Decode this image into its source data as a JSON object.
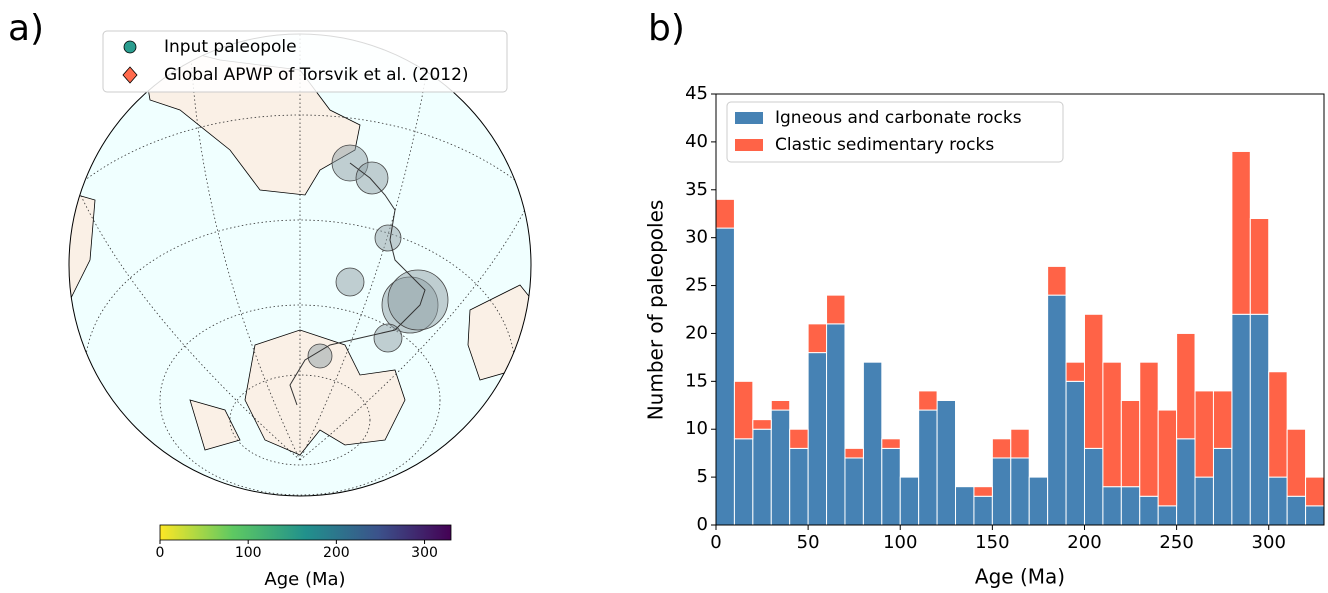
{
  "chart_data": [
    {
      "type": "map",
      "panel_label": "a)",
      "series": [
        {
          "name": "Input paleopole",
          "color": "#2a9d8f",
          "marker": "circle"
        },
        {
          "name": "Global APWP of Torsvik et al. (2012)",
          "color": "#ff6a4d",
          "marker": "diamond"
        }
      ],
      "colorbar": {
        "label": "Age (Ma)",
        "lim": [
          0,
          330
        ],
        "ticks": [
          0,
          100,
          200,
          300
        ]
      }
    },
    {
      "type": "histogram",
      "panel_label": "b)",
      "xlabel": "Age (Ma)",
      "ylabel": "Number of paleopoles",
      "bins": [
        0,
        10,
        20,
        30,
        40,
        50,
        60,
        70,
        80,
        90,
        100,
        110,
        120,
        130,
        140,
        150,
        160,
        170,
        180,
        190,
        200,
        210,
        220,
        230,
        240,
        250,
        260,
        270,
        280,
        290,
        300,
        310,
        320,
        330
      ],
      "series": [
        {
          "name": "Igneous and carbonate rocks",
          "color": "#4682b4",
          "values": [
            31,
            9,
            10,
            12,
            8,
            18,
            21,
            7,
            17,
            8,
            5,
            12,
            13,
            4,
            3,
            7,
            7,
            5,
            24,
            15,
            8,
            4,
            4,
            3,
            2,
            9,
            5,
            8,
            22,
            22,
            5,
            3,
            2
          ]
        },
        {
          "name": "Clastic sedimentary rocks",
          "color": "#ff6347",
          "values": [
            3,
            6,
            1,
            1,
            2,
            3,
            3,
            1,
            0,
            1,
            0,
            2,
            0,
            0,
            1,
            2,
            3,
            0,
            3,
            2,
            14,
            13,
            9,
            14,
            10,
            11,
            9,
            6,
            17,
            10,
            11,
            7,
            3
          ]
        }
      ],
      "xlim": [
        0,
        330
      ],
      "xticks": [
        0,
        50,
        100,
        150,
        200,
        250,
        300
      ],
      "ylim": [
        0,
        45
      ],
      "yticks": [
        0,
        5,
        10,
        15,
        20,
        25,
        30,
        35,
        40,
        45
      ],
      "legend": "upper left",
      "stacked": true
    }
  ]
}
